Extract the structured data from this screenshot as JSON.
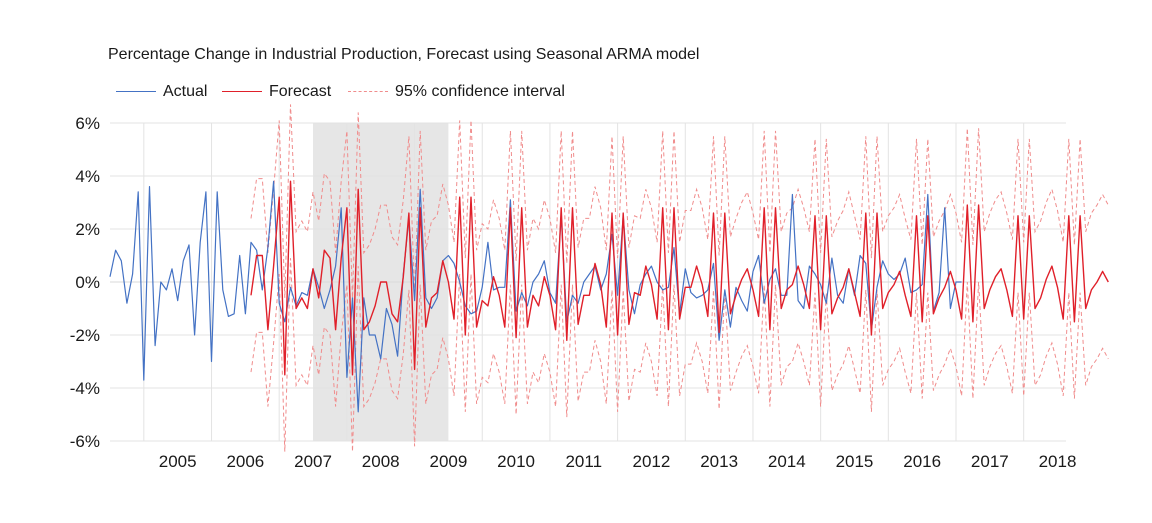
{
  "chart_data": {
    "type": "line",
    "title": "Percentage Change in Industrial Production, Forecast using Seasonal ARMA model",
    "xlabel": "",
    "ylabel": "",
    "x_tick_labels": [
      "2005",
      "2006",
      "2007",
      "2008",
      "2009",
      "2010",
      "2011",
      "2012",
      "2013",
      "2014",
      "2015",
      "2016",
      "2017",
      "2018"
    ],
    "y_tick_labels": [
      "6%",
      "4%",
      "2%",
      "0%",
      "-2%",
      "-4%",
      "-6%"
    ],
    "ylim": [
      -6,
      6
    ],
    "x_unit": "monthly observations, Jul 2004 - Oct 2018",
    "grid": "vertical lines at year boundaries",
    "legend_position": "top-left",
    "shaded_region": {
      "from": "2007-07",
      "to": "2009-06",
      "color": "#e6e6e6"
    },
    "series": [
      {
        "name": "Actual",
        "color": "#4472c4",
        "start": "2004-07",
        "values": [
          0.2,
          1.2,
          0.8,
          -0.8,
          0.3,
          3.4,
          -3.7,
          3.6,
          -2.4,
          0.0,
          -0.3,
          0.5,
          -0.7,
          0.8,
          1.4,
          -2.0,
          1.5,
          3.4,
          -3.0,
          3.4,
          -0.3,
          -1.3,
          -1.2,
          1.0,
          -1.2,
          1.5,
          1.2,
          -0.3,
          1.3,
          3.8,
          -0.8,
          -1.5,
          -0.2,
          -0.9,
          -0.4,
          -0.5,
          0.5,
          -0.2,
          -1.0,
          -0.3,
          0.6,
          2.8,
          -3.6,
          -0.6,
          -4.9,
          -0.6,
          -2.0,
          -2.0,
          -2.9,
          -1.0,
          -1.6,
          -2.8,
          0.3,
          2.4,
          -0.7,
          3.5,
          -0.6,
          -1.0,
          -0.6,
          0.8,
          1.0,
          0.7,
          0.0,
          -0.9,
          -1.2,
          -1.1,
          -0.2,
          1.5,
          -0.3,
          -0.2,
          -0.2,
          3.1,
          -1.1,
          -0.4,
          -0.9,
          0.0,
          0.3,
          0.8,
          -0.4,
          -0.8,
          2.5,
          -1.5,
          -0.5,
          -0.8,
          0.0,
          0.3,
          0.6,
          -0.3,
          0.3,
          1.8,
          -0.5,
          2.5,
          -0.3,
          -1.2,
          -0.1,
          0.3,
          0.6,
          0.0,
          -0.3,
          -0.2,
          1.3,
          -1.2,
          0.5,
          -0.4,
          -0.6,
          -0.5,
          -0.3,
          0.7,
          -2.2,
          -0.3,
          -1.7,
          -0.2,
          -0.7,
          -1.1,
          0.4,
          1.0,
          -0.8,
          0.1,
          0.5,
          -0.5,
          -0.5,
          3.3,
          -0.7,
          -1.0,
          0.6,
          0.3,
          -0.1,
          -0.8,
          0.9,
          -0.5,
          -0.8,
          0.5,
          -0.5,
          1.0,
          0.7,
          -1.8,
          -0.2,
          0.8,
          0.3,
          0.1,
          0.3,
          0.9,
          -0.4,
          -0.3,
          -0.1,
          3.3,
          -1.1,
          -0.4,
          2.8,
          -1.0,
          0.0,
          0.0
        ]
      },
      {
        "name": "Forecast",
        "color": "#e0202a",
        "start": "2006-08",
        "values": [
          -0.5,
          1.0,
          1.0,
          -1.8,
          0.6,
          3.2,
          -3.5,
          3.8,
          -1.0,
          -0.6,
          -1.0,
          0.5,
          -0.6,
          1.2,
          0.9,
          -1.8,
          0.9,
          2.8,
          -3.5,
          3.5,
          -1.8,
          -1.5,
          -0.9,
          0.0,
          0.0,
          -1.2,
          -1.5,
          0.2,
          2.6,
          -3.3,
          2.8,
          -1.7,
          -0.6,
          -0.4,
          0.8,
          0.0,
          -1.4,
          3.2,
          -2.0,
          3.2,
          -1.7,
          -0.7,
          -0.9,
          0.2,
          -0.5,
          -1.7,
          2.8,
          -2.1,
          2.8,
          -1.7,
          -0.5,
          -0.9,
          0.2,
          -0.5,
          -1.8,
          2.8,
          -2.2,
          2.8,
          -1.6,
          -0.5,
          -0.5,
          0.7,
          -0.1,
          -1.7,
          2.6,
          -2.0,
          2.6,
          -1.6,
          -0.4,
          -0.5,
          0.6,
          -0.1,
          -1.4,
          2.8,
          -1.8,
          2.8,
          -1.4,
          -0.2,
          -0.2,
          0.6,
          -0.1,
          -1.3,
          2.6,
          -1.9,
          2.6,
          -1.2,
          -0.5,
          0.1,
          0.5,
          -0.3,
          -1.3,
          2.8,
          -1.8,
          2.8,
          -1.0,
          -0.3,
          -0.1,
          0.6,
          -0.1,
          -1.0,
          2.5,
          -1.8,
          2.5,
          -1.2,
          -0.6,
          -0.2,
          0.5,
          -0.4,
          -1.3,
          2.6,
          -2.0,
          2.6,
          -1.0,
          -0.4,
          -0.1,
          0.4,
          -0.5,
          -1.3,
          2.5,
          -1.5,
          2.5,
          -1.2,
          -0.6,
          -0.2,
          0.4,
          -0.3,
          -1.4,
          2.9,
          -1.5,
          2.9,
          -1.0,
          -0.3,
          0.2,
          0.5,
          -0.3,
          -1.3,
          2.5,
          -1.4,
          2.5,
          -1.0,
          -0.6,
          0.1,
          0.6,
          -0.2,
          -1.4,
          2.5,
          -1.5,
          2.5,
          -1.0,
          -0.3,
          0.0,
          0.4,
          0.0
        ]
      },
      {
        "name": "95% confidence interval",
        "color": "#f08c8c",
        "style": "dashed",
        "offset": 2.9,
        "note": "upper and lower bands drawn at Forecast ± offset (percentage points)"
      }
    ]
  }
}
